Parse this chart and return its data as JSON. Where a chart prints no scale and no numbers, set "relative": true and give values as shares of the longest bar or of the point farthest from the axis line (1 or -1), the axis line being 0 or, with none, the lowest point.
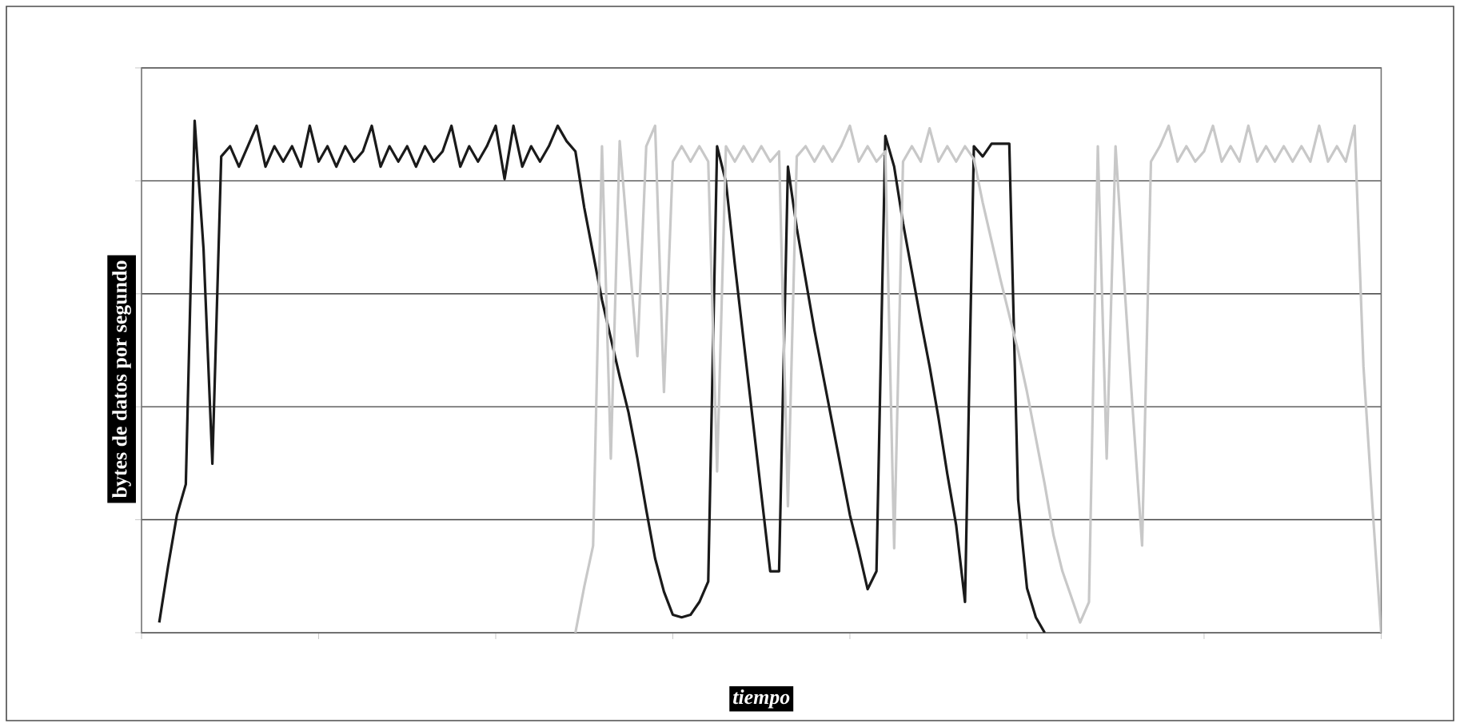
{
  "chart_data": {
    "type": "line",
    "xlabel": "tiempo",
    "ylabel": "bytes de datos por segundo",
    "relative": true,
    "grid": "y",
    "marker": "none",
    "line_style": "solid",
    "categories": [
      null,
      null,
      null,
      null,
      null,
      null,
      null,
      null,
      null,
      null,
      null,
      null,
      null,
      null,
      null,
      null,
      null,
      null,
      null,
      null,
      null,
      null,
      null,
      null,
      null,
      null,
      null,
      null,
      null,
      null,
      null,
      null,
      null,
      null,
      null,
      null,
      null,
      null,
      null,
      null,
      null,
      null,
      null,
      null,
      null,
      null,
      null,
      null,
      null,
      null,
      null,
      null,
      null,
      null,
      null,
      null,
      null,
      null,
      null,
      null,
      null,
      null,
      null,
      null,
      null,
      null,
      null,
      null,
      null,
      null,
      null,
      null,
      null,
      null,
      null,
      null,
      null,
      null,
      null,
      null,
      null,
      null,
      null,
      null,
      null,
      null,
      null,
      null,
      null,
      null,
      null,
      null,
      null,
      null,
      null,
      null,
      null,
      null,
      null,
      null,
      null,
      null,
      null,
      null,
      null,
      null,
      null,
      null,
      null,
      null,
      null,
      null,
      null,
      null,
      null,
      null,
      null,
      null,
      null,
      null,
      null,
      null,
      null,
      null,
      null,
      null,
      null,
      null,
      null,
      null,
      null,
      null,
      null,
      null,
      null,
      null,
      null,
      null,
      null,
      null,
      null
    ],
    "series": [
      {
        "color": "#1a1a1a",
        "values": [
          null,
          null,
          0.02,
          0.13,
          0.23,
          0.29,
          1.0,
          0.75,
          0.33,
          0.93,
          0.95,
          0.91,
          0.95,
          0.99,
          0.91,
          0.95,
          0.92,
          0.95,
          0.91,
          0.99,
          0.92,
          0.95,
          0.91,
          0.95,
          0.92,
          0.94,
          0.99,
          0.91,
          0.95,
          0.92,
          0.95,
          0.91,
          0.95,
          0.92,
          0.94,
          0.99,
          0.91,
          0.95,
          0.92,
          0.95,
          0.99,
          0.886,
          0.99,
          0.91,
          0.95,
          0.92,
          0.95,
          0.99,
          0.96,
          0.94,
          0.83,
          0.74,
          0.65,
          0.575,
          0.5,
          0.43,
          0.34,
          0.24,
          0.145,
          0.08,
          0.035,
          0.03,
          0.035,
          0.06,
          0.1,
          0.95,
          0.88,
          0.72,
          0.57,
          0.42,
          0.27,
          0.12,
          0.12,
          0.91,
          0.79,
          0.69,
          0.59,
          0.5,
          0.41,
          0.32,
          0.23,
          0.16,
          0.085,
          0.12,
          0.97,
          0.91,
          0.8,
          0.705,
          0.61,
          0.52,
          0.42,
          0.31,
          0.21,
          0.06,
          0.95,
          0.93,
          0.955,
          0.955,
          0.955,
          0.26,
          0.087,
          0.03,
          0,
          null,
          null,
          null,
          null,
          null,
          null,
          null,
          null,
          null,
          null,
          null,
          null,
          null,
          null,
          null,
          null,
          null,
          null,
          null,
          null,
          null,
          null,
          null,
          null,
          null,
          null,
          null,
          null,
          null,
          null,
          null,
          null,
          null,
          null,
          null,
          null,
          null,
          null
        ]
      },
      {
        "color": "#c8c8c8",
        "values": [
          null,
          null,
          null,
          null,
          null,
          null,
          null,
          null,
          null,
          null,
          null,
          null,
          null,
          null,
          null,
          null,
          null,
          null,
          null,
          null,
          null,
          null,
          null,
          null,
          null,
          null,
          null,
          null,
          null,
          null,
          null,
          null,
          null,
          null,
          null,
          null,
          null,
          null,
          null,
          null,
          null,
          null,
          null,
          null,
          null,
          null,
          null,
          null,
          null,
          0,
          0.09,
          0.17,
          0.95,
          0.34,
          0.96,
          0.75,
          0.54,
          0.95,
          0.99,
          0.47,
          0.92,
          0.95,
          0.92,
          0.95,
          0.92,
          0.315,
          0.95,
          0.92,
          0.95,
          0.92,
          0.95,
          0.92,
          0.94,
          0.247,
          0.93,
          0.95,
          0.92,
          0.95,
          0.92,
          0.95,
          0.99,
          0.92,
          0.95,
          0.92,
          0.94,
          0.165,
          0.92,
          0.95,
          0.92,
          0.985,
          0.92,
          0.95,
          0.92,
          0.95,
          0.925,
          0.84,
          0.765,
          0.69,
          0.62,
          0.55,
          0.47,
          0.38,
          0.29,
          0.19,
          0.12,
          0.07,
          0.02,
          0.06,
          0.95,
          0.34,
          0.95,
          0.68,
          0.42,
          0.17,
          0.92,
          0.95,
          0.99,
          0.92,
          0.95,
          0.92,
          0.94,
          0.99,
          0.92,
          0.95,
          0.92,
          0.99,
          0.92,
          0.95,
          0.92,
          0.95,
          0.92,
          0.95,
          0.92,
          0.99,
          0.92,
          0.95,
          0.92,
          0.99,
          0.52,
          0.25,
          0
        ]
      }
    ]
  }
}
